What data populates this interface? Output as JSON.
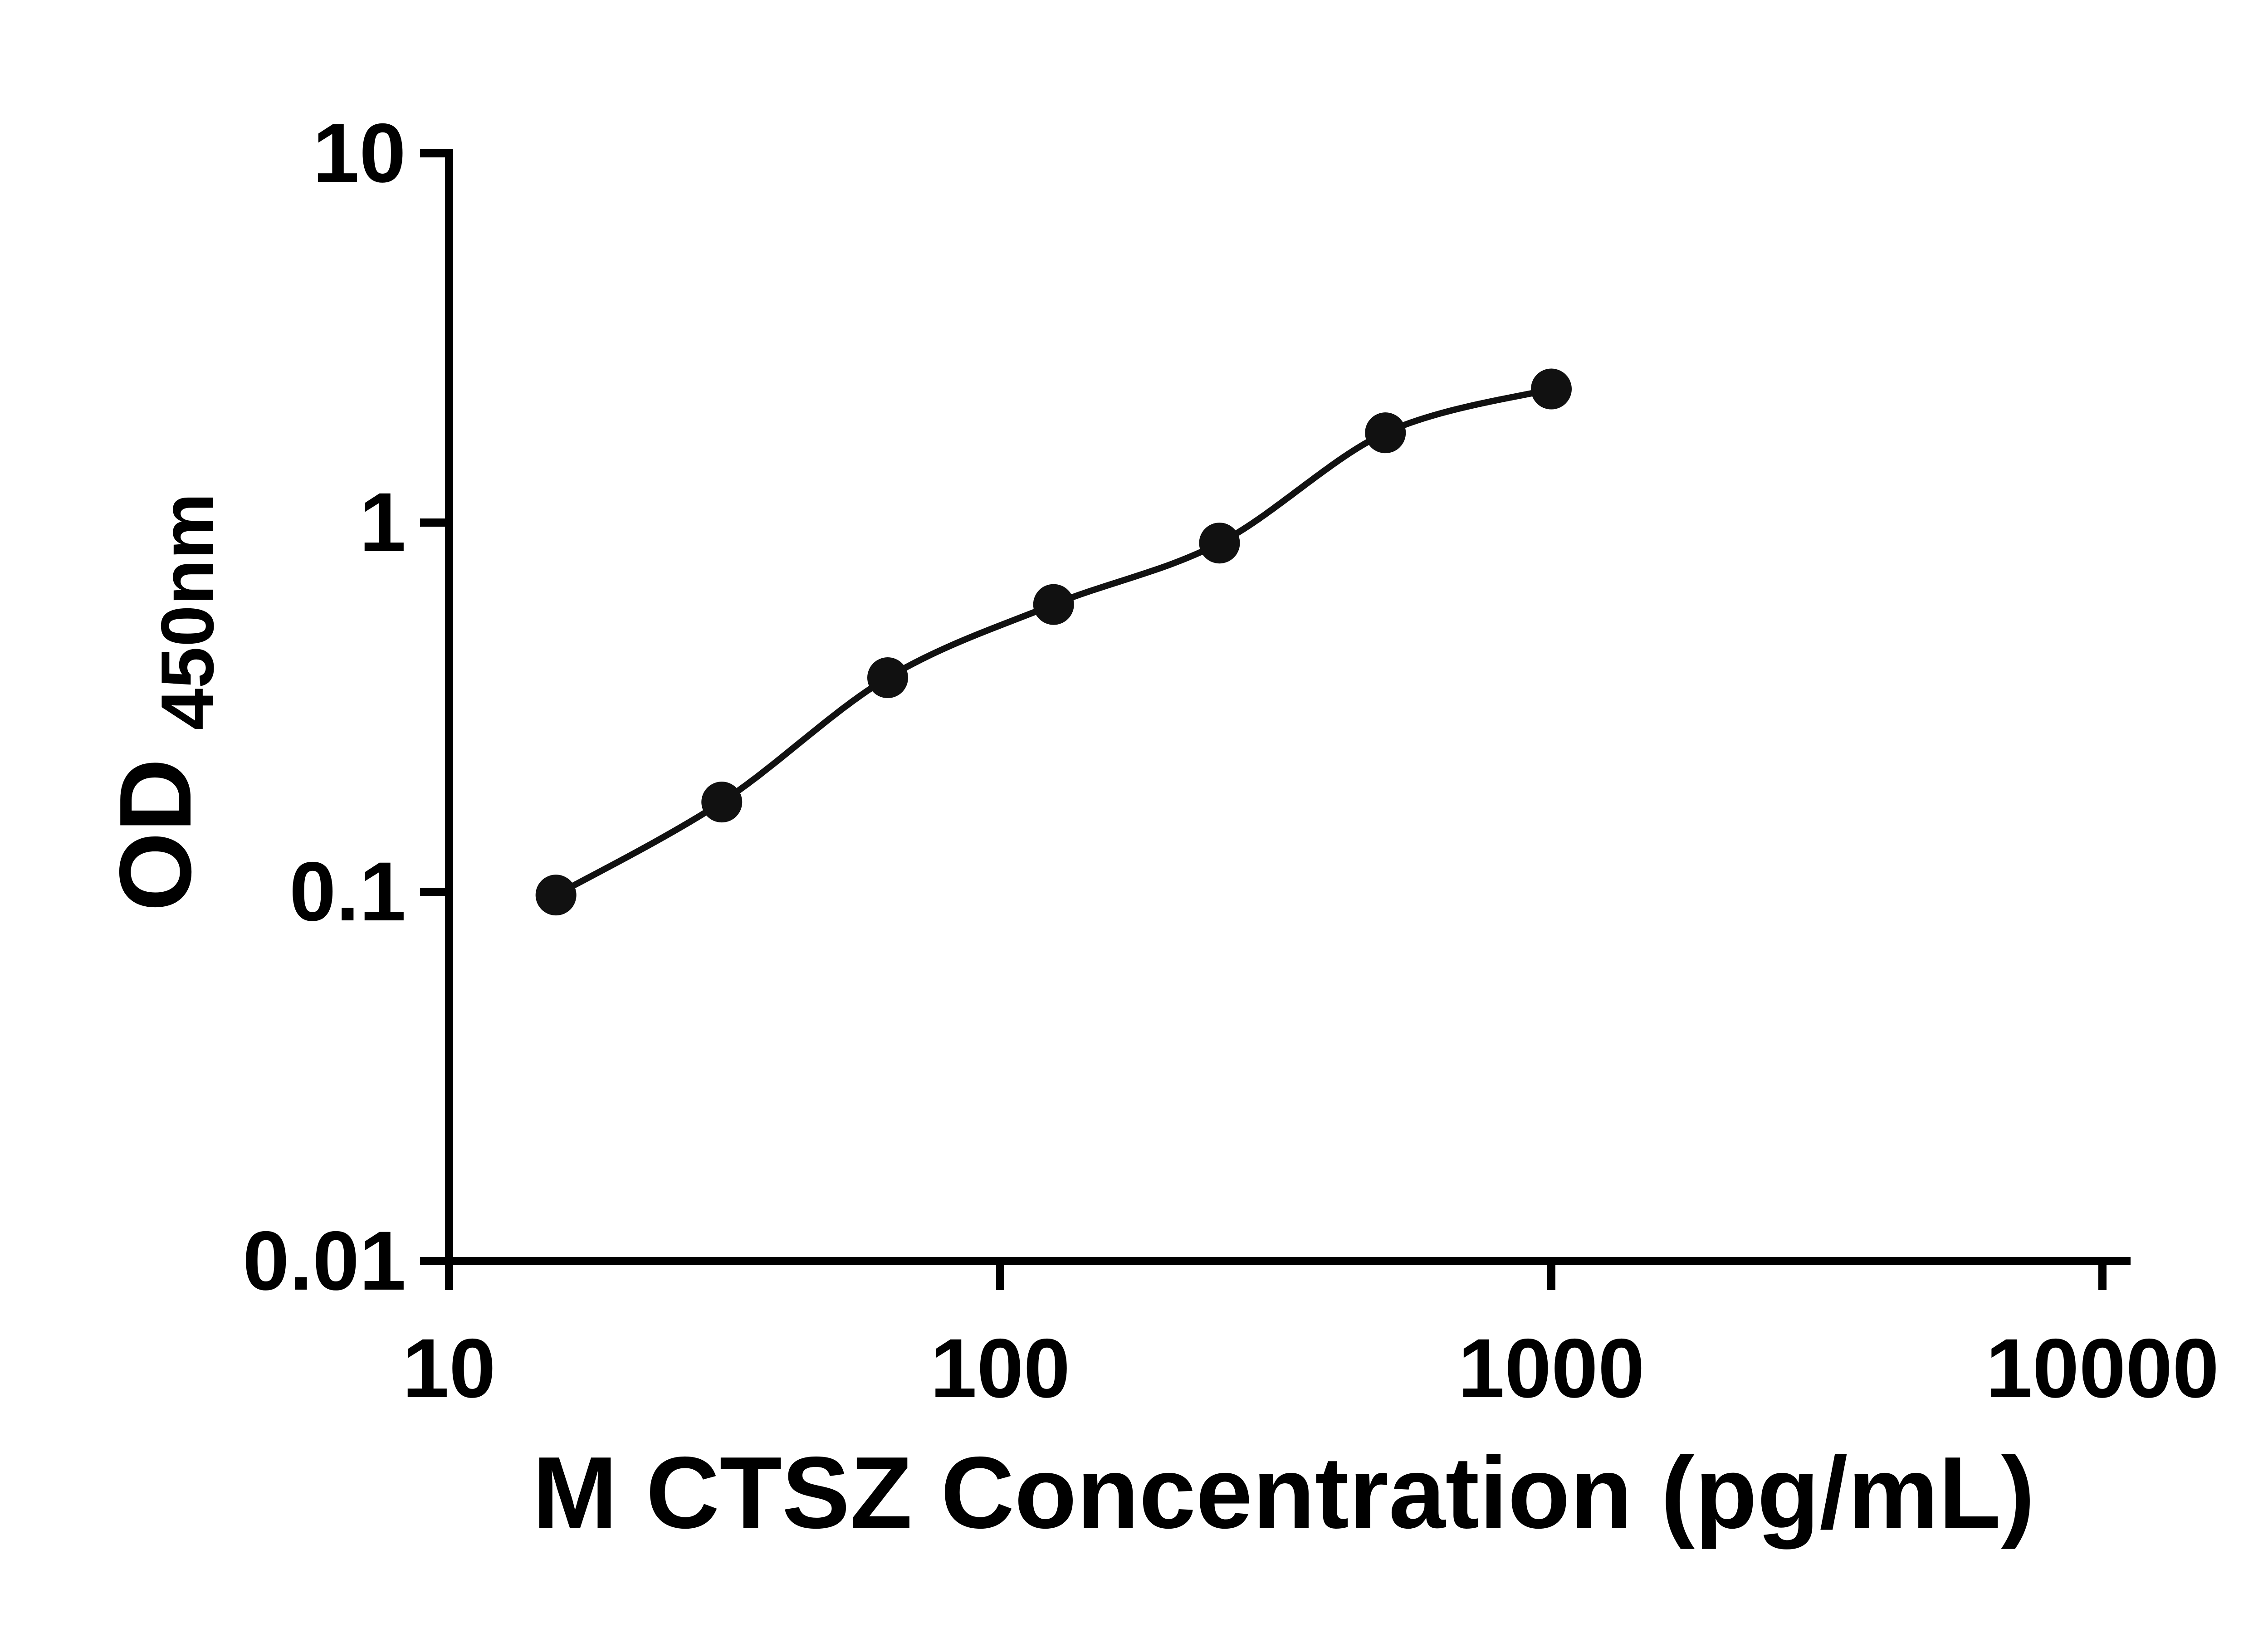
{
  "figure": {
    "background": "#ffffff"
  },
  "chart_data": {
    "type": "scatter",
    "title": "",
    "xlabel": "M CTSZ Concentration (pg/mL)",
    "ylabel_main": "OD",
    "ylabel_sub": "450nm",
    "x_scale": "log",
    "y_scale": "log",
    "xlim": [
      10,
      10000
    ],
    "ylim": [
      0.01,
      10
    ],
    "xticks": [
      10,
      100,
      1000,
      10000
    ],
    "yticks": [
      0.01,
      0.1,
      1,
      10
    ],
    "grid": false,
    "legend": "none",
    "trendline": true,
    "points": [
      {
        "x": 15.63,
        "y": 0.098
      },
      {
        "x": 31.25,
        "y": 0.175
      },
      {
        "x": 62.5,
        "y": 0.38
      },
      {
        "x": 125,
        "y": 0.6
      },
      {
        "x": 250,
        "y": 0.88
      },
      {
        "x": 500,
        "y": 1.75
      },
      {
        "x": 1000,
        "y": 2.3
      }
    ],
    "colors": {
      "axis": "#000000",
      "text": "#000000",
      "point": "#111111",
      "line": "#111111"
    }
  }
}
